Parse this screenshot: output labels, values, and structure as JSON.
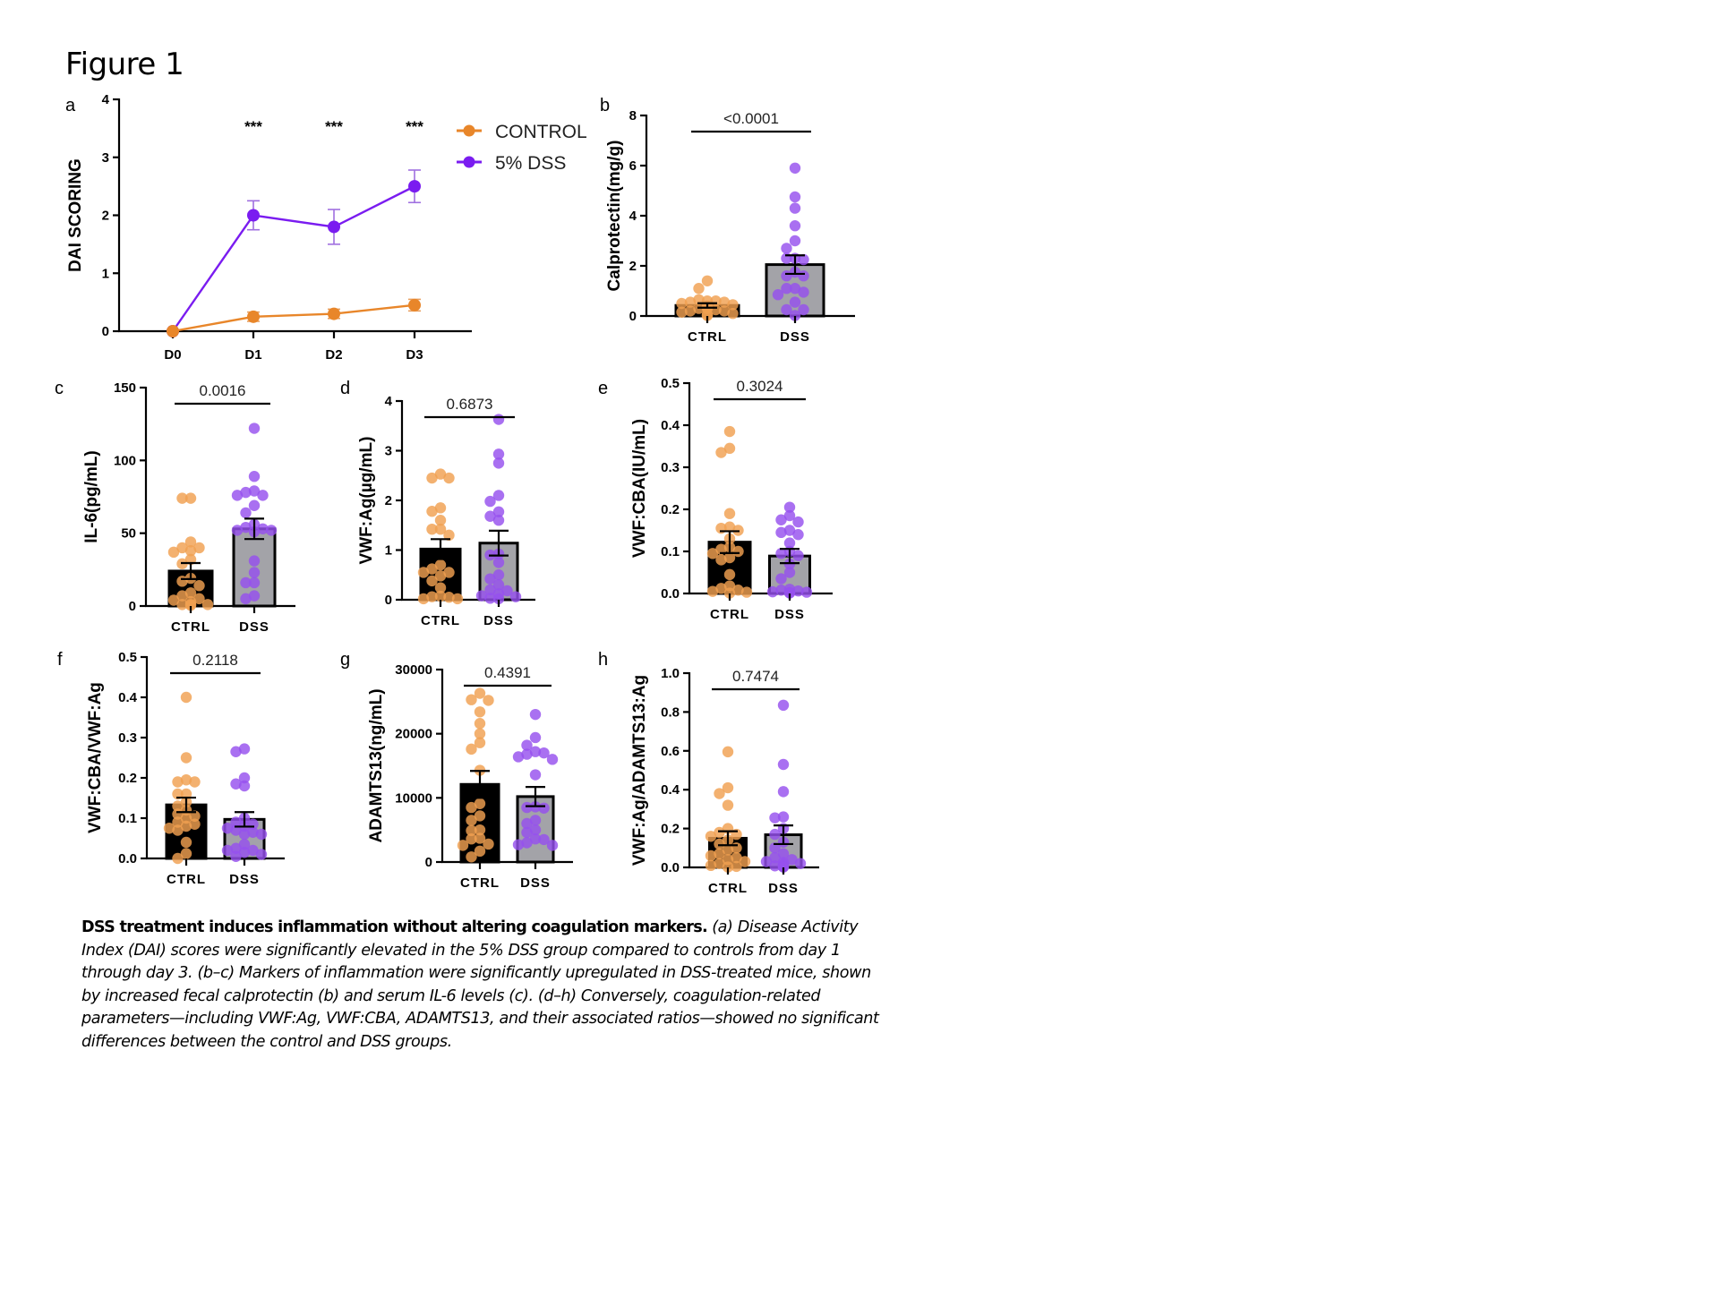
{
  "figure": {
    "title": "Figure 1",
    "colors": {
      "control": "#E8862A",
      "dss": "#7A1CF0",
      "ctrl_dot": "#F0A050",
      "dss_dot": "#9650EE",
      "ctrl_bar": "#000000",
      "dss_bar": "#A3A3A8",
      "axis": "#000000"
    }
  },
  "caption": {
    "lead": "DSS treatment induces inflammation without altering coagulation markers.",
    "body": " (a) Disease Activity Index (DAI) scores were significantly elevated in the 5% DSS group compared to controls from day 1 through day 3. (b–c) Markers of inflammation were significantly upregulated in DSS-treated mice, shown by increased fecal calprotectin (b) and serum IL-6 levels (c). (d–h) Conversely, coagulation-related parameters—including VWF:Ag, VWF:CBA, ADAMTS13, and their associated ratios—showed no significant differences between the control and DSS groups."
  },
  "chart_data": [
    {
      "panel": "a",
      "type": "line",
      "title": "",
      "xlabel": "",
      "ylabel": "DAI SCORING",
      "categories": [
        "D0",
        "D1",
        "D2",
        "D3"
      ],
      "ylim": [
        0,
        4
      ],
      "yticks": [
        0,
        1,
        2,
        3,
        4
      ],
      "legend": "top-right",
      "significance": [
        "",
        "***",
        "***",
        "***"
      ],
      "series": [
        {
          "name": "CONTROL",
          "values": [
            0,
            0.25,
            0.3,
            0.45
          ],
          "sem": [
            0,
            0.08,
            0.08,
            0.1
          ]
        },
        {
          "name": "5% DSS",
          "values": [
            0,
            2.0,
            1.8,
            2.5
          ],
          "sem": [
            0,
            0.25,
            0.3,
            0.28
          ]
        }
      ]
    },
    {
      "panel": "b",
      "type": "bar",
      "ylabel": "Calprotectin(mg/g)",
      "categories": [
        "CTRL",
        "DSS"
      ],
      "ylim": [
        0,
        8
      ],
      "yticks": [
        0,
        2,
        4,
        6,
        8
      ],
      "ytick_labels": [
        "0",
        "2",
        "4",
        "6",
        "8"
      ],
      "p_value": "<0.0001",
      "means": [
        0.42,
        2.05
      ],
      "sem": [
        0.09,
        0.37
      ],
      "points": [
        [
          1.4,
          1.1,
          0.6,
          0.65,
          0.6,
          0.55,
          0.55,
          0.5,
          0.45,
          0.4,
          0.35,
          0.3,
          0.3,
          0.25,
          0.2,
          0.2,
          0.15,
          0.1,
          0.05,
          0.02
        ],
        [
          5.9,
          4.75,
          4.3,
          3.6,
          3.0,
          2.7,
          2.3,
          2.3,
          2.25,
          1.75,
          1.6,
          1.6,
          1.1,
          1.1,
          0.95,
          0.85,
          0.55,
          0.25,
          0.25,
          0.02
        ]
      ]
    },
    {
      "panel": "c",
      "type": "bar",
      "ylabel": "IL-6(pg/mL)",
      "categories": [
        "CTRL",
        "DSS"
      ],
      "ylim": [
        0,
        150
      ],
      "yticks": [
        0,
        50,
        100,
        150
      ],
      "ytick_labels": [
        "0",
        "50",
        "100",
        "150"
      ],
      "p_value": "0.0016",
      "means": [
        24,
        53
      ],
      "sem": [
        5.5,
        7
      ],
      "points": [
        [
          74,
          74,
          44,
          40,
          40,
          38,
          37,
          32,
          29,
          19,
          17,
          14,
          9,
          7,
          5,
          4,
          3,
          1,
          1,
          1,
          0.5
        ],
        [
          122,
          89,
          79,
          78,
          76,
          76,
          69,
          64,
          56,
          54,
          53,
          52,
          52,
          51,
          31,
          23,
          16,
          16,
          7,
          5
        ]
      ]
    },
    {
      "panel": "d",
      "type": "bar",
      "ylabel": "VWF:Ag(µg/mL)",
      "categories": [
        "CTRL",
        "DSS"
      ],
      "ylim": [
        0,
        4
      ],
      "yticks": [
        0,
        1,
        2,
        3,
        4
      ],
      "ytick_labels": [
        "0",
        "1",
        "2",
        "3",
        "4"
      ],
      "p_value": "0.6873",
      "means": [
        1.02,
        1.14
      ],
      "sem": [
        0.2,
        0.25
      ],
      "points": [
        [
          2.53,
          2.45,
          2.45,
          1.85,
          1.78,
          1.6,
          1.42,
          1.42,
          1.3,
          0.7,
          0.62,
          0.55,
          0.55,
          0.48,
          0.38,
          0.24,
          0.07,
          0.06,
          0.05,
          0.02,
          0.02
        ],
        [
          3.63,
          2.93,
          2.75,
          2.1,
          1.98,
          1.77,
          1.68,
          1.6,
          0.92,
          0.9,
          0.75,
          0.5,
          0.42,
          0.3,
          0.2,
          0.18,
          0.12,
          0.08,
          0.06,
          0.03,
          0.02
        ]
      ]
    },
    {
      "panel": "e",
      "type": "bar",
      "ylabel": "VWF:CBA(IU/mL)",
      "categories": [
        "CTRL",
        "DSS"
      ],
      "ylim": [
        0,
        0.5
      ],
      "yticks": [
        0,
        0.1,
        0.2,
        0.3,
        0.4,
        0.5
      ],
      "ytick_labels": [
        "0.0",
        "0.1",
        "0.2",
        "0.3",
        "0.4",
        "0.5"
      ],
      "p_value": "0.3024",
      "means": [
        0.122,
        0.089
      ],
      "sem": [
        0.026,
        0.017
      ],
      "points": [
        [
          0.385,
          0.345,
          0.335,
          0.19,
          0.158,
          0.155,
          0.15,
          0.13,
          0.11,
          0.105,
          0.1,
          0.095,
          0.085,
          0.08,
          0.045,
          0.018,
          0.012,
          0.008,
          0.005,
          0.003,
          0.001
        ],
        [
          0.205,
          0.185,
          0.175,
          0.17,
          0.15,
          0.145,
          0.14,
          0.12,
          0.1,
          0.095,
          0.09,
          0.07,
          0.05,
          0.035,
          0.01,
          0.008,
          0.006,
          0.004,
          0.003,
          0.002,
          0.001
        ]
      ]
    },
    {
      "panel": "f",
      "type": "bar",
      "ylabel": "VWF:CBA/VWF:Ag",
      "categories": [
        "CTRL",
        "DSS"
      ],
      "ylim": [
        0,
        0.5
      ],
      "yticks": [
        0,
        0.1,
        0.2,
        0.3,
        0.4,
        0.5
      ],
      "ytick_labels": [
        "0.0",
        "0.1",
        "0.2",
        "0.3",
        "0.4",
        "0.5"
      ],
      "p_value": "0.2118",
      "means": [
        0.133,
        0.097
      ],
      "sem": [
        0.018,
        0.018
      ],
      "points": [
        [
          0.4,
          0.25,
          0.195,
          0.19,
          0.19,
          0.16,
          0.16,
          0.14,
          0.13,
          0.12,
          0.11,
          0.105,
          0.1,
          0.09,
          0.085,
          0.08,
          0.075,
          0.07,
          0.04,
          0.012,
          0.0
        ],
        [
          0.272,
          0.265,
          0.2,
          0.185,
          0.18,
          0.1,
          0.09,
          0.085,
          0.08,
          0.075,
          0.07,
          0.065,
          0.06,
          0.06,
          0.035,
          0.025,
          0.02,
          0.02,
          0.015,
          0.01,
          0.005
        ]
      ]
    },
    {
      "panel": "g",
      "type": "bar",
      "ylabel": "ADAMTS13(ng/mL)",
      "categories": [
        "CTRL",
        "DSS"
      ],
      "ylim": [
        0,
        30000
      ],
      "yticks": [
        0,
        10000,
        20000,
        30000
      ],
      "ytick_labels": [
        "0",
        "10000",
        "20000",
        "30000"
      ],
      "p_value": "0.4391",
      "means": [
        12100,
        10200
      ],
      "sem": [
        2100,
        1500
      ],
      "points": [
        [
          26300,
          25300,
          25200,
          23400,
          21600,
          20000,
          18600,
          17600,
          14300,
          9100,
          8500,
          7200,
          6500,
          5000,
          4900,
          3700,
          3600,
          2800,
          2600,
          1700,
          800
        ],
        [
          23000,
          19400,
          18200,
          17200,
          17000,
          16800,
          16400,
          16000,
          13600,
          8600,
          8500,
          8400,
          6500,
          6000,
          5000,
          4600,
          3600,
          3500,
          3000,
          2700,
          2600
        ]
      ]
    },
    {
      "panel": "h",
      "type": "bar",
      "ylabel": "VWF:Ag/ADAMTS13:Ag",
      "categories": [
        "CTRL",
        "DSS"
      ],
      "ylim": [
        0,
        1.0
      ],
      "yticks": [
        0,
        0.2,
        0.4,
        0.6,
        0.8,
        1.0
      ],
      "ytick_labels": [
        "0.0",
        "0.2",
        "0.4",
        "0.6",
        "0.8",
        "1.0"
      ],
      "p_value": "0.7474",
      "means": [
        0.15,
        0.168
      ],
      "sem": [
        0.036,
        0.048
      ],
      "points": [
        [
          0.595,
          0.41,
          0.38,
          0.32,
          0.2,
          0.18,
          0.17,
          0.16,
          0.14,
          0.12,
          0.1,
          0.09,
          0.07,
          0.06,
          0.05,
          0.04,
          0.03,
          0.02,
          0.01,
          0.005,
          0.002
        ],
        [
          0.835,
          0.53,
          0.39,
          0.26,
          0.255,
          0.2,
          0.17,
          0.13,
          0.1,
          0.07,
          0.05,
          0.04,
          0.03,
          0.025,
          0.02,
          0.015,
          0.01,
          0.008,
          0.005,
          0.003,
          0.002
        ]
      ]
    }
  ]
}
